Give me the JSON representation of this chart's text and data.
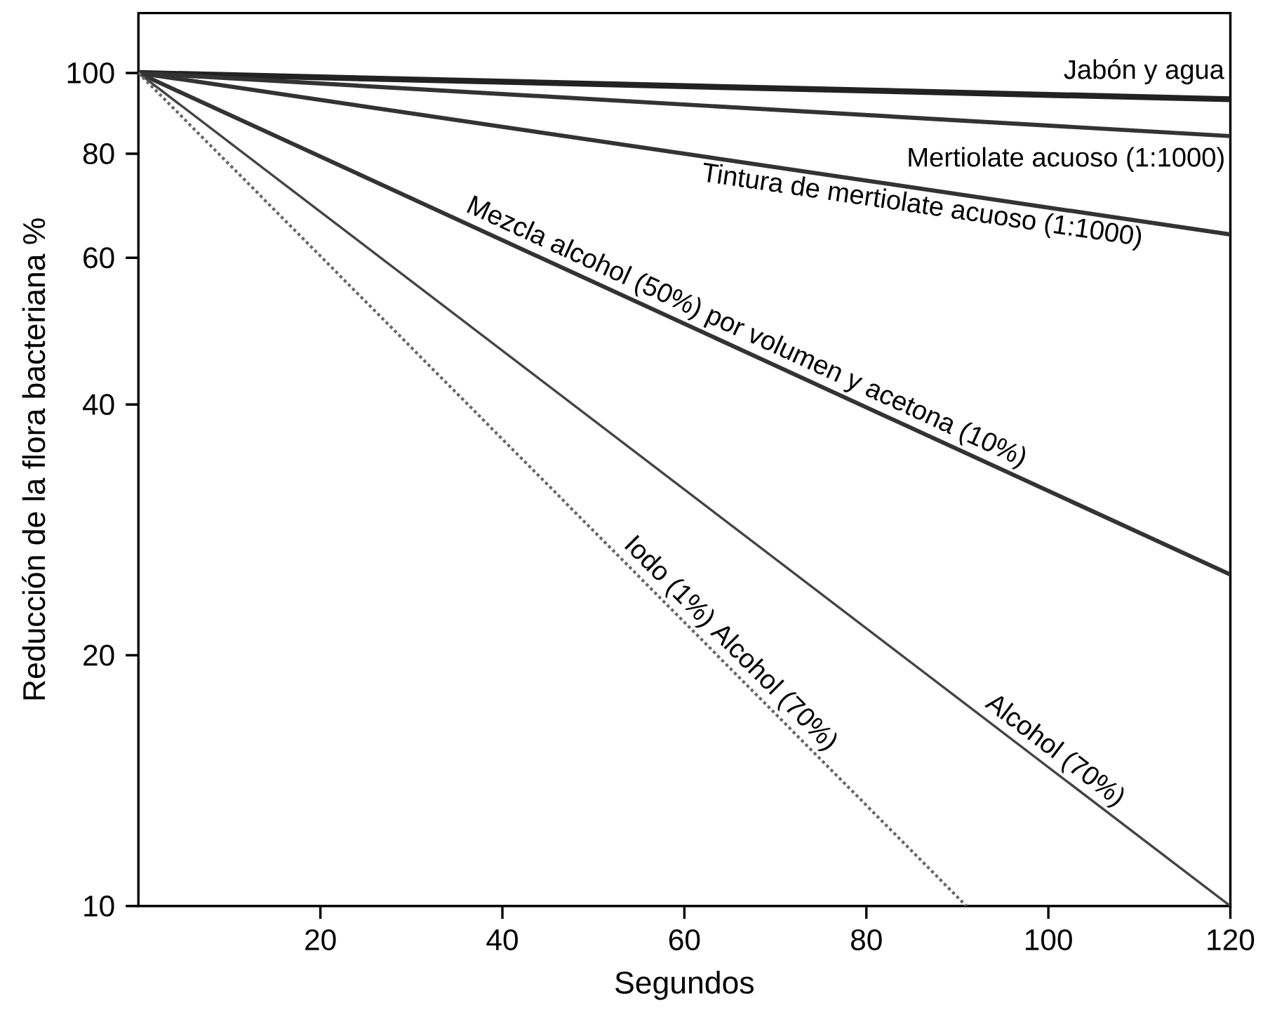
{
  "chart_data": {
    "type": "line",
    "xlabel": "Segundos",
    "ylabel": "Reducción de la flora bacteriana %",
    "log": "y",
    "xlim": [
      0,
      120
    ],
    "ylim": [
      10,
      118
    ],
    "xticks": [
      20,
      40,
      60,
      80,
      100,
      120
    ],
    "yticks": [
      10,
      20,
      40,
      60,
      80,
      100
    ],
    "series": [
      {
        "name": "Jabón y agua",
        "color": "#222222",
        "line_style": "solid",
        "x": [
          0,
          120
        ],
        "values": [
          100,
          93
        ]
      },
      {
        "name": "Mertiolate acuoso (1:1000)",
        "color": "#333333",
        "line_style": "solid",
        "x": [
          0,
          120
        ],
        "values": [
          100,
          84
        ]
      },
      {
        "name": "Tintura de mertiolate acuoso (1:1000)",
        "color": "#333333",
        "line_style": "solid",
        "x": [
          0,
          120
        ],
        "values": [
          100,
          64
        ]
      },
      {
        "name": "Mezcla alcohol (50%) por volumen y acetona (10%)",
        "color": "#333333",
        "line_style": "solid",
        "x": [
          0,
          120
        ],
        "values": [
          100,
          25
        ]
      },
      {
        "name": "Alcohol (70%)",
        "color": "#444444",
        "line_style": "solid",
        "x": [
          0,
          120
        ],
        "values": [
          100,
          10
        ]
      },
      {
        "name": "Iodo (1%) Alcohol (70%)",
        "color": "#666666",
        "line_style": "dotted",
        "x": [
          0,
          91
        ],
        "values": [
          100,
          10
        ]
      }
    ]
  }
}
